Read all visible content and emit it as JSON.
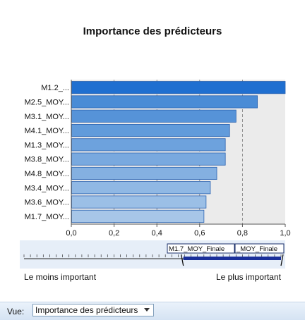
{
  "chart_data": {
    "type": "bar",
    "orientation": "horizontal",
    "title": "Importance des prédicteurs",
    "categories": [
      "M1.2_...",
      "M2.5_MOY...",
      "M3.1_MOY...",
      "M4.1_MOY...",
      "M1.3_MOY...",
      "M3.8_MOY...",
      "M4.8_MOY...",
      "M3.4_MOY...",
      "M3.6_MOY...",
      "M1.7_MOY..."
    ],
    "values": [
      1.0,
      0.87,
      0.77,
      0.74,
      0.72,
      0.72,
      0.68,
      0.65,
      0.63,
      0.62
    ],
    "xlim": [
      0,
      1
    ],
    "xticks": [
      "0,0",
      "0,2",
      "0,4",
      "0,6",
      "0,8",
      "1,0"
    ],
    "xlabel": "",
    "ylabel": "",
    "grid": "vertical dashed"
  },
  "slider": {
    "min_label": "M1.7_MOY_Finale",
    "max_label": "_MOY_Finale",
    "low_label": "Le moins important",
    "high_label": "Le plus important",
    "selected_range": [
      0.62,
      1.0
    ]
  },
  "footer": {
    "view_label": "Vue:",
    "view_value": "Importance des prédicteurs"
  },
  "colors": {
    "plot_background": "#ebebeb",
    "bar_top": "#1f6fd0",
    "bar_light": "#a7c6e8",
    "bar_border": "#2a62b0",
    "panel": "#e6eef8",
    "footer": "#dce8f5"
  }
}
